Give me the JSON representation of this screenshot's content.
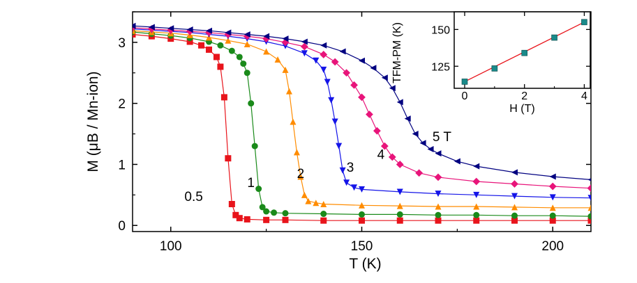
{
  "chart_data": [
    {
      "type": "scatter",
      "xlabel": "T (K)",
      "ylabel": "M (μB / Mn-ion)",
      "xlim": [
        90,
        210
      ],
      "ylim": [
        -0.1,
        3.5
      ],
      "xticks": [
        100,
        150,
        200
      ],
      "yticks": [
        0,
        1,
        2,
        3
      ],
      "legend": "none",
      "grid": false,
      "curve_labels": [
        "0.5",
        "1",
        "2",
        "3",
        "4",
        "5 T"
      ],
      "series": [
        {
          "name": "0.5",
          "color": "#e8141b",
          "marker": "square",
          "x": [
            90,
            95,
            100,
            105,
            108,
            110,
            112,
            113,
            114,
            115,
            116,
            117,
            118,
            120,
            125,
            130,
            140,
            150,
            160,
            170,
            180,
            190,
            200,
            210
          ],
          "y": [
            3.13,
            3.1,
            3.06,
            3.01,
            2.95,
            2.88,
            2.76,
            2.6,
            2.1,
            1.1,
            0.35,
            0.17,
            0.12,
            0.1,
            0.09,
            0.09,
            0.08,
            0.08,
            0.08,
            0.08,
            0.08,
            0.08,
            0.08,
            0.08
          ]
        },
        {
          "name": "1",
          "color": "#1a8a1a",
          "marker": "circle",
          "x": [
            90,
            95,
            100,
            105,
            110,
            113,
            116,
            118,
            119,
            120,
            121,
            122,
            123,
            124,
            125,
            127,
            130,
            140,
            150,
            160,
            170,
            180,
            190,
            200,
            210
          ],
          "y": [
            3.17,
            3.14,
            3.11,
            3.07,
            3.01,
            2.95,
            2.86,
            2.76,
            2.65,
            2.5,
            2.0,
            1.3,
            0.6,
            0.3,
            0.23,
            0.21,
            0.2,
            0.19,
            0.18,
            0.18,
            0.17,
            0.17,
            0.16,
            0.16,
            0.15
          ]
        },
        {
          "name": "2",
          "color": "#ff8c00",
          "marker": "triangle-up",
          "x": [
            90,
            95,
            100,
            105,
            110,
            115,
            120,
            125,
            128,
            130,
            131,
            132,
            133,
            134,
            135,
            136,
            138,
            140,
            150,
            160,
            170,
            180,
            190,
            200,
            210
          ],
          "y": [
            3.19,
            3.17,
            3.15,
            3.12,
            3.08,
            3.03,
            2.97,
            2.85,
            2.72,
            2.55,
            2.2,
            1.7,
            1.2,
            0.8,
            0.5,
            0.4,
            0.37,
            0.35,
            0.33,
            0.32,
            0.31,
            0.31,
            0.3,
            0.29,
            0.29
          ]
        },
        {
          "name": "3",
          "color": "#1414e8",
          "marker": "triangle-down",
          "x": [
            90,
            95,
            100,
            105,
            110,
            115,
            120,
            125,
            130,
            135,
            138,
            140,
            141,
            142,
            143,
            144,
            145,
            146,
            148,
            150,
            160,
            170,
            180,
            190,
            200,
            210
          ],
          "y": [
            3.22,
            3.2,
            3.18,
            3.16,
            3.13,
            3.1,
            3.06,
            3.01,
            2.94,
            2.82,
            2.7,
            2.55,
            2.35,
            2.05,
            1.7,
            1.3,
            0.9,
            0.7,
            0.62,
            0.59,
            0.55,
            0.52,
            0.5,
            0.48,
            0.46,
            0.45
          ]
        },
        {
          "name": "4",
          "color": "#e8147a",
          "marker": "diamond",
          "x": [
            90,
            95,
            100,
            105,
            110,
            115,
            120,
            125,
            130,
            135,
            140,
            143,
            146,
            148,
            150,
            152,
            154,
            156,
            158,
            160,
            165,
            170,
            180,
            190,
            200,
            210
          ],
          "y": [
            3.24,
            3.22,
            3.2,
            3.18,
            3.16,
            3.13,
            3.1,
            3.06,
            3.0,
            2.93,
            2.8,
            2.68,
            2.5,
            2.3,
            2.1,
            1.82,
            1.55,
            1.3,
            1.12,
            1.0,
            0.86,
            0.79,
            0.72,
            0.68,
            0.64,
            0.61
          ]
        },
        {
          "name": "5 T",
          "color": "#000080",
          "marker": "triangle-left",
          "x": [
            90,
            95,
            100,
            105,
            110,
            115,
            120,
            125,
            130,
            135,
            140,
            145,
            150,
            153,
            156,
            158,
            160,
            162,
            164,
            166,
            168,
            170,
            175,
            180,
            190,
            200,
            210
          ],
          "y": [
            3.27,
            3.25,
            3.23,
            3.21,
            3.19,
            3.16,
            3.13,
            3.1,
            3.06,
            3.01,
            2.95,
            2.85,
            2.7,
            2.58,
            2.42,
            2.25,
            2.02,
            1.75,
            1.5,
            1.35,
            1.25,
            1.18,
            1.05,
            0.97,
            0.87,
            0.8,
            0.75
          ]
        }
      ]
    },
    {
      "type": "scatter",
      "xlabel": "H (T)",
      "ylabel": "TFM-PM (K)",
      "xlim": [
        -0.35,
        4.2
      ],
      "ylim": [
        110,
        162
      ],
      "xticks": [
        0,
        2,
        4
      ],
      "yticks": [
        125,
        150
      ],
      "grid": false,
      "fit_line": {
        "color": "#e8141b",
        "from": [
          0,
          114.5
        ],
        "to": [
          4,
          155
        ]
      },
      "series": [
        {
          "name": "",
          "color": "#1a8a8a",
          "marker": "square",
          "x": [
            0,
            1,
            2,
            3,
            4
          ],
          "y": [
            114.5,
            123.5,
            134,
            144.5,
            155
          ]
        }
      ]
    }
  ]
}
